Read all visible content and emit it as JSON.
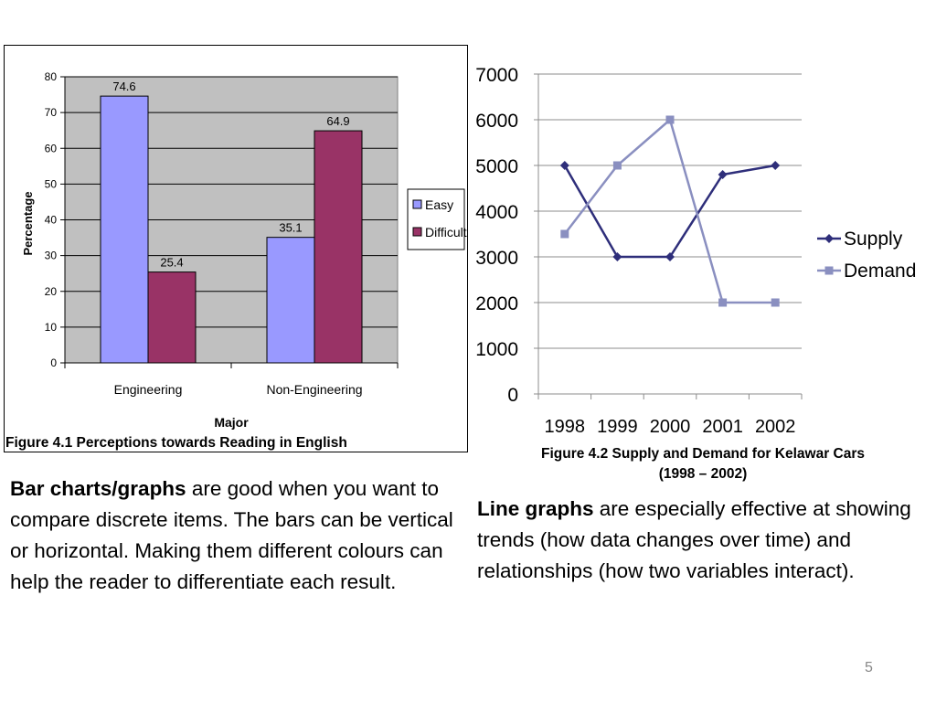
{
  "chart_data": [
    {
      "type": "bar",
      "categories": [
        "Engineering",
        "Non-Engineering"
      ],
      "series": [
        {
          "name": "Easy",
          "values": [
            74.6,
            35.1
          ],
          "color": "#9999ff"
        },
        {
          "name": "Difficult",
          "values": [
            25.4,
            64.9
          ],
          "color": "#993366"
        }
      ],
      "xlabel": "Major",
      "ylabel": "Percentage",
      "ylim": [
        0,
        80
      ],
      "yticks": [
        "0",
        "10",
        "20",
        "30",
        "40",
        "50",
        "60",
        "70",
        "80"
      ],
      "grid": true,
      "legend": "right",
      "plot_background": "#c0c0c0"
    },
    {
      "type": "line",
      "x": [
        "1998",
        "1999",
        "2000",
        "2001",
        "2002"
      ],
      "series": [
        {
          "name": "Supply",
          "values": [
            5000,
            3000,
            3000,
            4800,
            5000
          ],
          "color": "#2e2e7a",
          "marker": "diamond"
        },
        {
          "name": "Demand",
          "values": [
            3500,
            5000,
            6000,
            2000,
            2000
          ],
          "color": "#8a8fc0",
          "marker": "square"
        }
      ],
      "ylim": [
        0,
        7000
      ],
      "yticks": [
        "0",
        "1000",
        "2000",
        "3000",
        "4000",
        "5000",
        "6000",
        "7000"
      ],
      "grid": true,
      "legend": "right"
    }
  ],
  "captions": {
    "fig1": "Figure 4.1  Perceptions towards Reading in English",
    "fig2_line1": "Figure 4.2  Supply and Demand for Kelawar Cars",
    "fig2_line2": "(1998 – 2002)"
  },
  "left_text": {
    "bold": "Bar charts/graphs",
    "rest": " are good when you want to compare discrete items. The bars can be vertical or horizontal. Making them different colours can help the reader to differentiate each result."
  },
  "right_text": {
    "bold": "Line graphs",
    "rest": " are especially effective at showing trends (how data changes over time) and relationships (how two variables interact)."
  },
  "page_number": "5"
}
